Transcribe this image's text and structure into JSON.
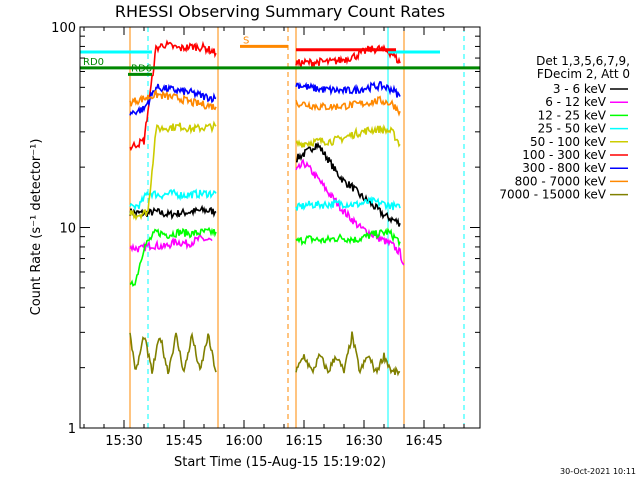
{
  "chart_data": {
    "type": "line",
    "title": "RHESSI Observing Summary Count Rates",
    "xlabel": "Start Time (15-Aug-15 15:19:02)",
    "ylabel": "Count Rate (s⁻¹ detector⁻¹)",
    "yscale": "log",
    "ylim": [
      1,
      100
    ],
    "xlim": [
      "15:19",
      "16:59"
    ],
    "x_ticks": [
      "15:30",
      "15:45",
      "16:00",
      "16:15",
      "16:30",
      "16:45"
    ],
    "y_ticks": [
      "1",
      "10",
      "100"
    ],
    "grid": false,
    "legend_position": "right",
    "legend_header": [
      "Det 1,3,5,6,7,9,",
      "FDecim 2, Att 0"
    ],
    "timestamp": "30-Oct-2021 10:11",
    "series": [
      {
        "name": "3 - 6 keV",
        "color": "#000000",
        "segments": [
          [
            [
              "15:31:30",
              12
            ],
            [
              "15:33",
              11.8
            ],
            [
              "15:36",
              11.8
            ],
            [
              "15:38",
              12
            ],
            [
              "15:41",
              11.6
            ],
            [
              "15:44",
              11.8
            ],
            [
              "15:47",
              12
            ],
            [
              "15:50",
              12.2
            ],
            [
              "15:53",
              12
            ]
          ],
          [
            [
              "16:13",
              22
            ],
            [
              "16:16",
              24
            ],
            [
              "16:18",
              26
            ],
            [
              "16:19",
              25
            ],
            [
              "16:21",
              22
            ],
            [
              "16:23",
              19
            ],
            [
              "16:25",
              17
            ],
            [
              "16:27",
              16
            ],
            [
              "16:29",
              14.5
            ],
            [
              "16:31",
              13.5
            ],
            [
              "16:33",
              12.5
            ],
            [
              "16:35",
              11.5
            ],
            [
              "16:37",
              11
            ],
            [
              "16:39",
              10.5
            ]
          ]
        ]
      },
      {
        "name": "6 - 12 keV",
        "color": "#ff00ff",
        "segments": [
          [
            [
              "15:31:30",
              8
            ],
            [
              "15:34",
              7.8
            ],
            [
              "15:37",
              8.2
            ],
            [
              "15:40",
              8
            ],
            [
              "15:43",
              8.5
            ],
            [
              "15:46",
              8.3
            ],
            [
              "15:49",
              8.8
            ],
            [
              "15:52",
              8.6
            ]
          ],
          [
            [
              "16:13",
              19
            ],
            [
              "16:15",
              21
            ],
            [
              "16:17",
              19
            ],
            [
              "16:19",
              17
            ],
            [
              "16:21",
              15
            ],
            [
              "16:23",
              13.5
            ],
            [
              "16:25",
              12
            ],
            [
              "16:27",
              11
            ],
            [
              "16:29",
              10
            ],
            [
              "16:31",
              9.5
            ],
            [
              "16:33",
              9
            ],
            [
              "16:35",
              8.6
            ],
            [
              "16:37",
              8.2
            ],
            [
              "16:39",
              7.5
            ],
            [
              "16:40",
              6.5
            ]
          ]
        ]
      },
      {
        "name": "12 - 25 keV",
        "color": "#00ff00",
        "segments": [
          [
            [
              "15:31:30",
              5
            ],
            [
              "15:33",
              5.5
            ],
            [
              "15:35",
              8
            ],
            [
              "15:38",
              9.5
            ],
            [
              "15:41",
              9.2
            ],
            [
              "15:44",
              9.5
            ],
            [
              "15:47",
              9.3
            ],
            [
              "15:50",
              9.5
            ],
            [
              "15:53",
              9.5
            ]
          ],
          [
            [
              "16:13",
              8.5
            ],
            [
              "16:16",
              8.8
            ],
            [
              "16:20",
              8.6
            ],
            [
              "16:24",
              8.9
            ],
            [
              "16:28",
              8.7
            ],
            [
              "16:32",
              9.2
            ],
            [
              "16:36",
              9.5
            ],
            [
              "16:39",
              8.5
            ]
          ]
        ]
      },
      {
        "name": "25 - 50 keV",
        "color": "#00ffff",
        "segments": [
          [
            [
              "15:31:30",
              12.5
            ],
            [
              "15:34",
              13
            ],
            [
              "15:36",
              15
            ],
            [
              "15:39",
              14.5
            ],
            [
              "15:42",
              14.8
            ],
            [
              "15:45",
              14.5
            ],
            [
              "15:48",
              14.7
            ],
            [
              "15:51",
              14.8
            ],
            [
              "15:53",
              14.8
            ]
          ],
          [
            [
              "16:13",
              12.5
            ],
            [
              "16:16",
              13
            ],
            [
              "16:20",
              13
            ],
            [
              "16:24",
              13.2
            ],
            [
              "16:28",
              13
            ],
            [
              "16:32",
              13.5
            ],
            [
              "16:36",
              13
            ],
            [
              "16:39",
              12.5
            ]
          ]
        ]
      },
      {
        "name": "50 - 100 keV",
        "color": "#cccc00",
        "segments": [
          [
            [
              "15:31:30",
              12
            ],
            [
              "15:33",
              11.5
            ],
            [
              "15:36",
              12
            ],
            [
              "15:38",
              31
            ],
            [
              "15:41",
              31.5
            ],
            [
              "15:44",
              32
            ],
            [
              "15:47",
              31
            ],
            [
              "15:50",
              31.5
            ],
            [
              "15:53",
              32
            ]
          ],
          [
            [
              "16:13",
              26
            ],
            [
              "16:16",
              26.5
            ],
            [
              "16:19",
              27
            ],
            [
              "16:22",
              27
            ],
            [
              "16:25",
              28
            ],
            [
              "16:28",
              29.5
            ],
            [
              "16:31",
              30.5
            ],
            [
              "16:34",
              31
            ],
            [
              "16:37",
              30
            ],
            [
              "16:39",
              26
            ]
          ]
        ]
      },
      {
        "name": "100 - 300 keV",
        "color": "#ff0000",
        "segments": [
          [
            [
              "15:31:30",
              25
            ],
            [
              "15:33",
              26
            ],
            [
              "15:35",
              27
            ],
            [
              "15:38",
              78
            ],
            [
              "15:40",
              82
            ],
            [
              "15:42",
              80
            ],
            [
              "15:44",
              78
            ],
            [
              "15:47",
              80
            ],
            [
              "15:50",
              79
            ],
            [
              "15:52",
              76
            ],
            [
              "15:53",
              74
            ]
          ],
          [
            [
              "16:13",
              66
            ],
            [
              "16:16",
              66.5
            ],
            [
              "16:19",
              67
            ],
            [
              "16:22",
              67
            ],
            [
              "16:25",
              69
            ],
            [
              "16:28",
              72
            ],
            [
              "16:31",
              77
            ],
            [
              "16:34",
              78
            ],
            [
              "16:37",
              74
            ],
            [
              "16:39",
              66
            ]
          ]
        ]
      },
      {
        "name": "300 - 800 keV",
        "color": "#0000ff",
        "segments": [
          [
            [
              "15:31:30",
              37
            ],
            [
              "15:33",
              38
            ],
            [
              "15:35",
              39
            ],
            [
              "15:38",
              50
            ],
            [
              "15:41",
              49
            ],
            [
              "15:44",
              48
            ],
            [
              "15:47",
              47
            ],
            [
              "15:50",
              45
            ],
            [
              "15:53",
              44
            ]
          ],
          [
            [
              "16:13",
              52
            ],
            [
              "16:16",
              50
            ],
            [
              "16:19",
              49
            ],
            [
              "16:22",
              48.5
            ],
            [
              "16:25",
              48
            ],
            [
              "16:28",
              48.5
            ],
            [
              "16:31",
              50
            ],
            [
              "16:34",
              51
            ],
            [
              "16:37",
              49
            ],
            [
              "16:39",
              45
            ]
          ]
        ]
      },
      {
        "name": "800 - 7000 keV",
        "color": "#ff8800",
        "segments": [
          [
            [
              "15:31:30",
              42
            ],
            [
              "15:33",
              43
            ],
            [
              "15:35",
              44
            ],
            [
              "15:38",
              46
            ],
            [
              "15:41",
              45
            ],
            [
              "15:44",
              44
            ],
            [
              "15:47",
              42
            ],
            [
              "15:50",
              41
            ],
            [
              "15:53",
              40
            ]
          ],
          [
            [
              "16:13",
              42
            ],
            [
              "16:16",
              41
            ],
            [
              "16:19",
              40
            ],
            [
              "16:22",
              40
            ],
            [
              "16:25",
              40.5
            ],
            [
              "16:28",
              41
            ],
            [
              "16:31",
              42
            ],
            [
              "16:34",
              43
            ],
            [
              "16:37",
              41.5
            ],
            [
              "16:39",
              38
            ]
          ]
        ]
      },
      {
        "name": "7000 - 15000 keV",
        "color": "#808000",
        "segments": [
          [
            [
              "15:31:30",
              2.9
            ],
            [
              "15:33",
              1.9
            ],
            [
              "15:35",
              2.9
            ],
            [
              "15:37",
              1.9
            ],
            [
              "15:39",
              2.9
            ],
            [
              "15:41",
              1.9
            ],
            [
              "15:43",
              2.9
            ],
            [
              "15:45",
              1.9
            ],
            [
              "15:47",
              2.9
            ],
            [
              "15:49",
              1.9
            ],
            [
              "15:51",
              2.9
            ],
            [
              "15:53",
              1.9
            ]
          ],
          [
            [
              "16:13",
              1.9
            ],
            [
              "16:15",
              2.3
            ],
            [
              "16:17",
              1.9
            ],
            [
              "16:19",
              2.3
            ],
            [
              "16:21",
              1.9
            ],
            [
              "16:23",
              2.3
            ],
            [
              "16:25",
              1.9
            ],
            [
              "16:27",
              2.9
            ],
            [
              "16:29",
              1.9
            ],
            [
              "16:31",
              2.3
            ],
            [
              "16:33",
              1.9
            ],
            [
              "16:35",
              2.3
            ],
            [
              "16:37",
              1.9
            ],
            [
              "16:39",
              1.9
            ]
          ]
        ]
      }
    ],
    "flag_bars": [
      {
        "label": "",
        "color": "#00ffff",
        "y": 75,
        "segments": [
          [
            "15:19",
            "15:37"
          ],
          [
            "16:36",
            "16:49"
          ]
        ]
      },
      {
        "label": "",
        "color": "#ff0000",
        "y": 77,
        "segments": [
          [
            "16:13",
            "16:38"
          ]
        ]
      },
      {
        "label": "S",
        "color": "#ff8800",
        "y": 80,
        "segments": [
          [
            "15:59",
            "16:11"
          ]
        ]
      },
      {
        "label": "RD0",
        "color": "#008800",
        "y": 62.5,
        "segments": [
          [
            "15:19",
            "16:59"
          ]
        ]
      },
      {
        "label": "RD6",
        "color": "#008800",
        "y": 58,
        "segments": [
          [
            "15:31",
            "15:37"
          ]
        ]
      }
    ],
    "vertical_lines": [
      {
        "x": "15:31:30",
        "color": "#ff8800",
        "style": "solid"
      },
      {
        "x": "15:36",
        "color": "#00ffff",
        "style": "dashed"
      },
      {
        "x": "15:53:30",
        "color": "#ff8800",
        "style": "solid"
      },
      {
        "x": "16:11",
        "color": "#ff8800",
        "style": "dashed"
      },
      {
        "x": "16:13",
        "color": "#ff8800",
        "style": "solid"
      },
      {
        "x": "16:36",
        "color": "#00ffff",
        "style": "solid"
      },
      {
        "x": "16:40",
        "color": "#ff8800",
        "style": "solid"
      },
      {
        "x": "16:55",
        "color": "#00ffff",
        "style": "dashed"
      }
    ]
  }
}
